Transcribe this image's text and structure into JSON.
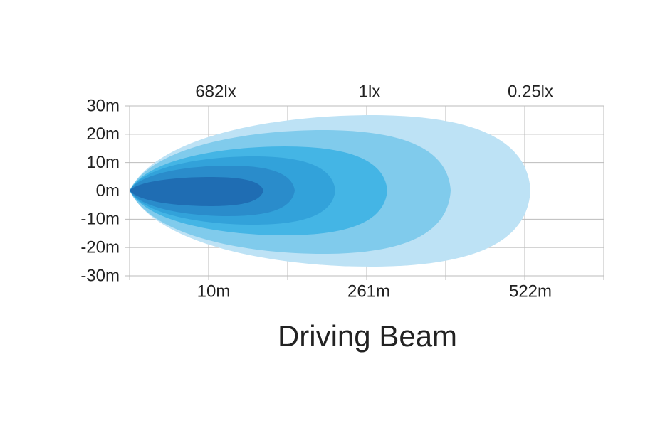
{
  "y_axis": {
    "labels": [
      "30m",
      "20m",
      "10m",
      "0m",
      "-10m",
      "-20m",
      "-30m"
    ]
  },
  "top_labels": [
    "682lx",
    "1lx",
    "0.25lx"
  ],
  "bottom_labels": [
    "10m",
    "261m",
    "522m"
  ],
  "title": "Driving Beam"
}
